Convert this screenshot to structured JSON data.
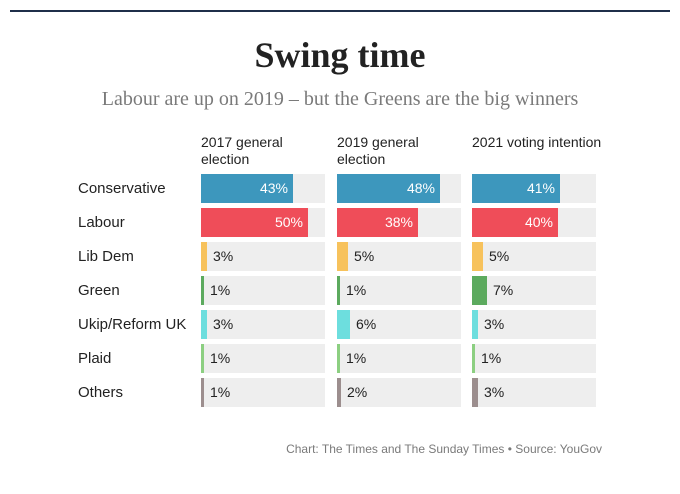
{
  "title": "Swing time",
  "subtitle": "Labour are up on 2019 – but the Greens are the big winners",
  "source": "Chart: The Times and The Sunday Times • Source: YouGov",
  "chart_data": {
    "type": "bar",
    "orientation": "horizontal",
    "categories": [
      "Conservative",
      "Labour",
      "Lib Dem",
      "Green",
      "Ukip/Reform UK",
      "Plaid",
      "Others"
    ],
    "colors": [
      "#3d97bd",
      "#ef4d59",
      "#f7c25c",
      "#5caa5e",
      "#6ddede",
      "#8ccf81",
      "#9c8e8e"
    ],
    "xlim": [
      0,
      50
    ],
    "series": [
      {
        "name": "2017 general election",
        "values": [
          43,
          50,
          3,
          1,
          3,
          1,
          1
        ],
        "labels": [
          "43%",
          "50%",
          "3%",
          "1%",
          "3%",
          "1%",
          "1%"
        ]
      },
      {
        "name": "2019 general election",
        "values": [
          48,
          38,
          5,
          1,
          6,
          1,
          2
        ],
        "labels": [
          "48%",
          "38%",
          "5%",
          "1%",
          "6%",
          "1%",
          "2%"
        ]
      },
      {
        "name": "2021 voting intention",
        "values": [
          41,
          40,
          5,
          7,
          3,
          1,
          3
        ],
        "labels": [
          "41%",
          "40%",
          "5%",
          "7%",
          "3%",
          "1%",
          "3%"
        ]
      }
    ]
  }
}
